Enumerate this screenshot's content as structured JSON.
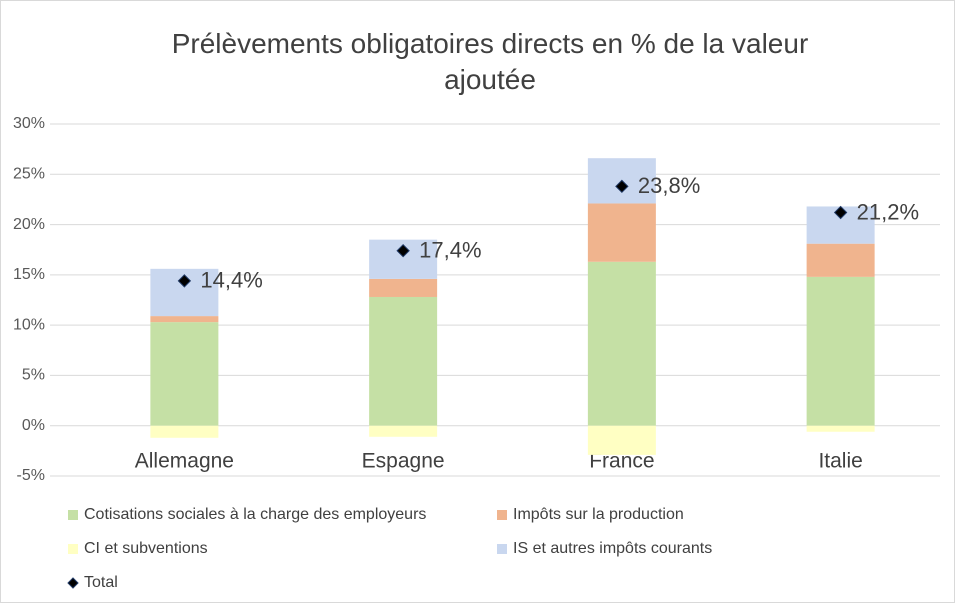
{
  "chart_data": {
    "type": "stacked_bar",
    "title": "Prélèvements obligatoires directs en % de la valeur ajoutée",
    "categories": [
      "Allemagne",
      "Espagne",
      "France",
      "Italie"
    ],
    "series": [
      {
        "name": "Cotisations sociales à la charge des employeurs",
        "color": "#c5e0a5",
        "values": [
          10.3,
          12.8,
          16.3,
          14.8
        ]
      },
      {
        "name": "Impôts sur la production",
        "color": "#f0b48e",
        "values": [
          0.6,
          1.8,
          5.8,
          3.3
        ]
      },
      {
        "name": "CI et subventions",
        "color": "#ffffc3",
        "values": [
          -1.2,
          -1.1,
          -2.9,
          -0.6
        ]
      },
      {
        "name": "IS et autres impôts courants",
        "color": "#c9d7ef",
        "values": [
          4.7,
          3.9,
          4.5,
          3.7
        ]
      },
      {
        "name": "Total",
        "color": "#000000",
        "marker": "diamond",
        "values": [
          14.4,
          17.4,
          23.8,
          21.2
        ],
        "value_labels": [
          "14,4%",
          "17,4%",
          "23,8%",
          "21,2%"
        ]
      }
    ],
    "ylim": [
      -5,
      30
    ],
    "yticks": [
      {
        "value": -5,
        "label": "-5%"
      },
      {
        "value": 0,
        "label": "0%"
      },
      {
        "value": 5,
        "label": "5%"
      },
      {
        "value": 10,
        "label": "10%"
      },
      {
        "value": 15,
        "label": "15%"
      },
      {
        "value": 20,
        "label": "20%"
      },
      {
        "value": 25,
        "label": "25%"
      },
      {
        "value": 30,
        "label": "30%"
      }
    ],
    "grid": true,
    "legend": "bottom"
  }
}
